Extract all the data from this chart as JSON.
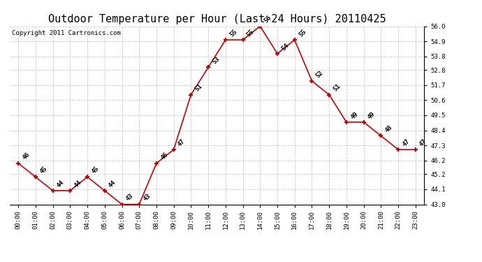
{
  "title": "Outdoor Temperature per Hour (Last 24 Hours) 20110425",
  "copyright": "Copyright 2011 Cartronics.com",
  "hours": [
    "00:00",
    "01:00",
    "02:00",
    "03:00",
    "04:00",
    "05:00",
    "06:00",
    "07:00",
    "08:00",
    "09:00",
    "10:00",
    "11:00",
    "12:00",
    "13:00",
    "14:00",
    "15:00",
    "16:00",
    "17:00",
    "18:00",
    "19:00",
    "20:00",
    "21:00",
    "22:00",
    "23:00"
  ],
  "temps": [
    46,
    45,
    44,
    44,
    45,
    44,
    43,
    43,
    46,
    47,
    51,
    53,
    55,
    55,
    56,
    54,
    55,
    52,
    51,
    49,
    49,
    48,
    47,
    47
  ],
  "line_color": "#cc0000",
  "marker": "+",
  "marker_color": "#cc0000",
  "bg_color": "#ffffff",
  "grid_color": "#c8c8c8",
  "ylim_min": 43.0,
  "ylim_max": 56.0,
  "yticks": [
    43.0,
    44.1,
    45.2,
    46.2,
    47.3,
    48.4,
    49.5,
    50.6,
    51.7,
    52.8,
    53.8,
    54.9,
    56.0
  ],
  "title_fontsize": 11,
  "label_fontsize": 6.5,
  "copyright_fontsize": 6.5,
  "tick_fontsize": 6.5
}
